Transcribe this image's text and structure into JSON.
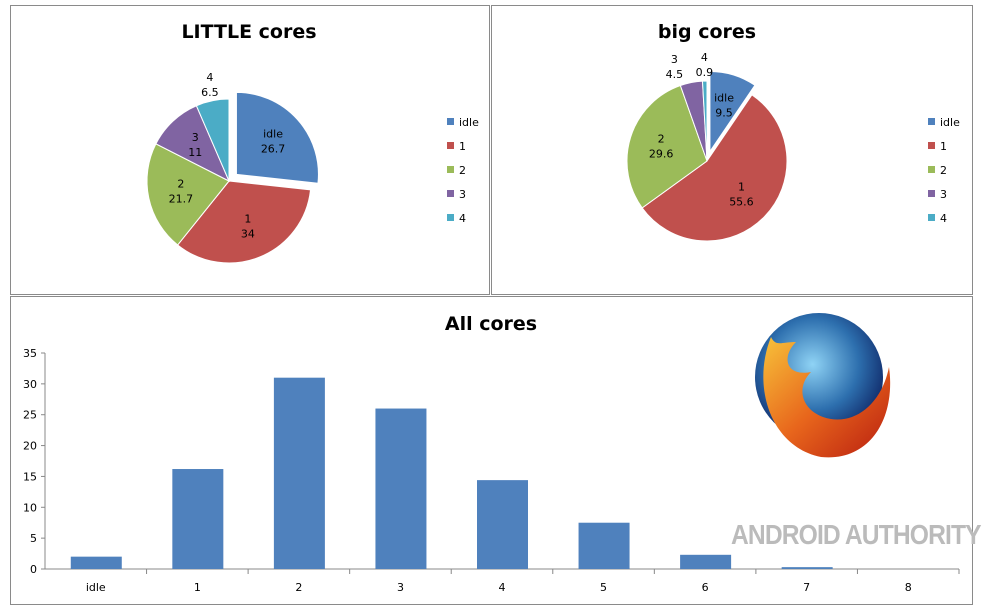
{
  "chart_data": [
    {
      "type": "pie",
      "title": "LITTLE cores",
      "labels": [
        "idle",
        "1",
        "2",
        "3",
        "4"
      ],
      "values": [
        26.7,
        34,
        21.7,
        11,
        6.5
      ],
      "exploded": "idle",
      "legend": "right"
    },
    {
      "type": "pie",
      "title": "big cores",
      "labels": [
        "idle",
        "1",
        "2",
        "3",
        "4"
      ],
      "values": [
        9.5,
        55.6,
        29.6,
        4.5,
        0.9
      ],
      "exploded": "idle",
      "legend": "right"
    },
    {
      "type": "bar",
      "title": "All cores",
      "categories": [
        "idle",
        "1",
        "2",
        "3",
        "4",
        "5",
        "6",
        "7",
        "8"
      ],
      "values": [
        2,
        16.2,
        31,
        26,
        14.4,
        7.5,
        2.3,
        0.3,
        0
      ],
      "ylim": [
        0,
        35
      ],
      "yticks": [
        0,
        5,
        10,
        15,
        20,
        25,
        30,
        35
      ],
      "xlabel": "",
      "ylabel": ""
    }
  ],
  "colors": [
    "#4f81bd",
    "#c0504d",
    "#9bbb59",
    "#8064a2",
    "#4bacc6"
  ],
  "watermark": "ANDROID AUTHORITY"
}
